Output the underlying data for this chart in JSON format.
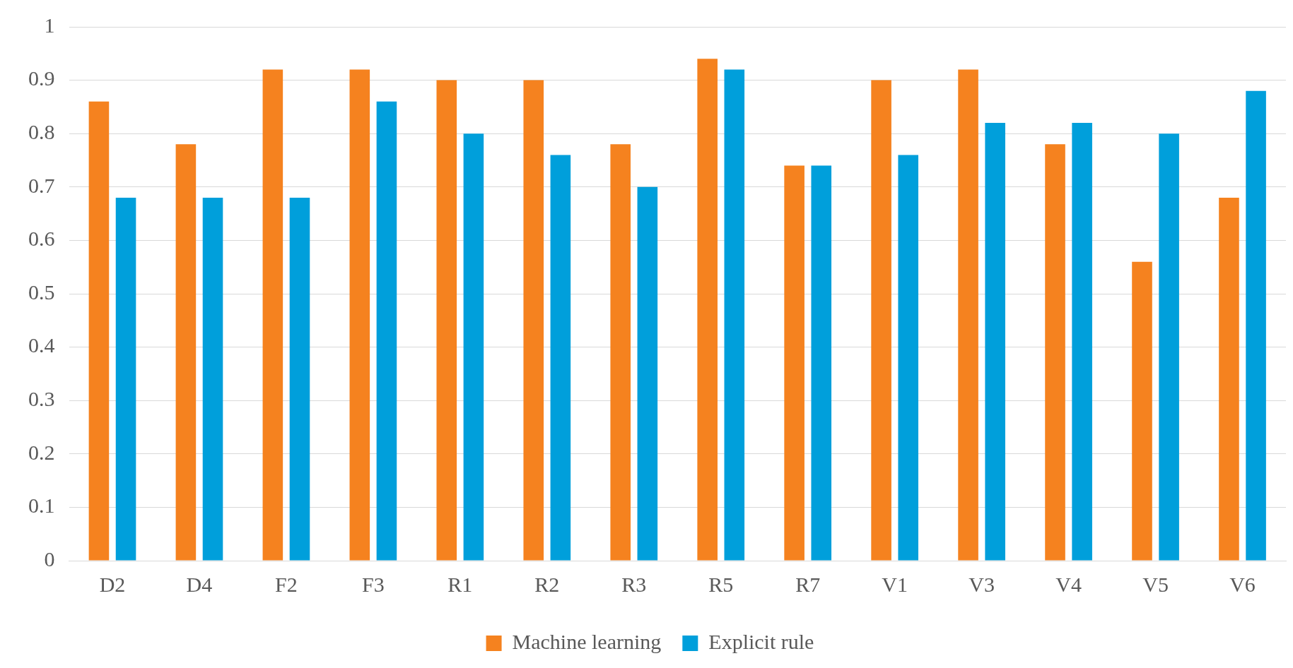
{
  "chart_data": {
    "type": "bar",
    "categories": [
      "D2",
      "D4",
      "F2",
      "F3",
      "R1",
      "R2",
      "R3",
      "R5",
      "R7",
      "V1",
      "V3",
      "V4",
      "V5",
      "V6"
    ],
    "series": [
      {
        "name": "Machine learning",
        "color": "#f5821f",
        "values": [
          0.86,
          0.78,
          0.92,
          0.92,
          0.9,
          0.9,
          0.78,
          0.94,
          0.74,
          0.9,
          0.92,
          0.78,
          0.56,
          0.68
        ]
      },
      {
        "name": "Explicit rule",
        "color": "#009fdb",
        "values": [
          0.68,
          0.68,
          0.68,
          0.86,
          0.8,
          0.76,
          0.7,
          0.92,
          0.74,
          0.76,
          0.82,
          0.82,
          0.8,
          0.88
        ]
      }
    ],
    "ylim": [
      0,
      1
    ],
    "yticks": [
      0,
      0.1,
      0.2,
      0.3,
      0.4,
      0.5,
      0.6,
      0.7,
      0.8,
      0.9,
      1
    ],
    "grid": "y",
    "legend": "bottom"
  }
}
